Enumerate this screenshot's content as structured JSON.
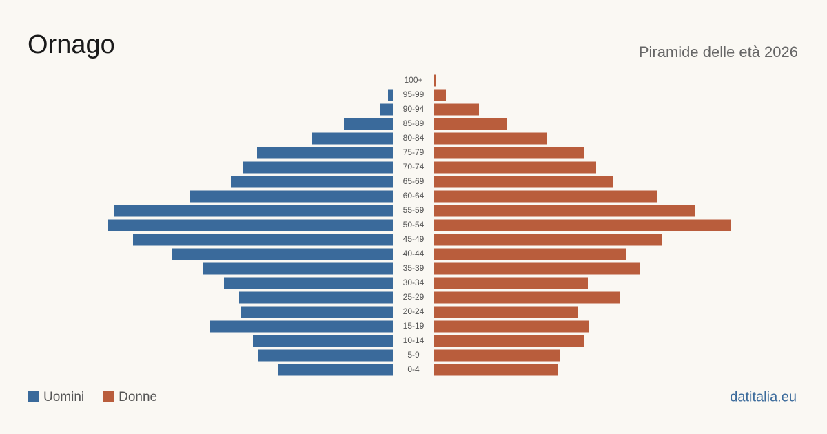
{
  "chart_data": {
    "type": "pyramid",
    "title": "Ornago",
    "subtitle": "Piramide delle età 2026",
    "source": "datitalia.eu",
    "categories": [
      "100+",
      "95-99",
      "90-94",
      "85-89",
      "80-84",
      "75-79",
      "70-74",
      "65-69",
      "60-64",
      "55-59",
      "50-54",
      "45-49",
      "40-44",
      "35-39",
      "30-34",
      "25-29",
      "20-24",
      "15-19",
      "10-14",
      "5-9",
      "0-4"
    ],
    "series": [
      {
        "name": "Uomini",
        "color": "#3a6a9b",
        "values": [
          0,
          7,
          18,
          71,
          117,
          197,
          218,
          235,
          294,
          404,
          413,
          377,
          321,
          275,
          245,
          223,
          220,
          265,
          203,
          195,
          167
        ]
      },
      {
        "name": "Donne",
        "color": "#b95d3c",
        "values": [
          2,
          17,
          65,
          106,
          164,
          218,
          235,
          260,
          323,
          379,
          430,
          331,
          278,
          299,
          223,
          270,
          208,
          225,
          218,
          182,
          179
        ]
      }
    ]
  }
}
